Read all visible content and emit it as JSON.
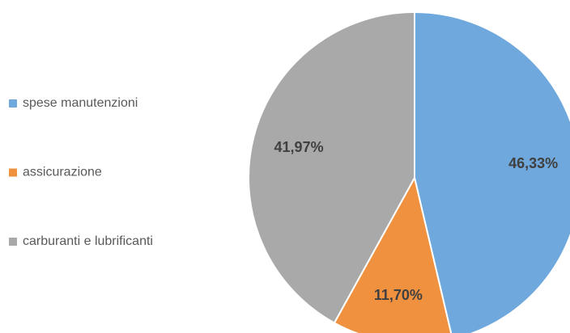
{
  "chart_data": {
    "type": "pie",
    "categories": [
      "spese manutenzioni",
      "assicurazione",
      "carburanti e lubrificanti"
    ],
    "values": [
      46.33,
      11.7,
      41.97
    ],
    "value_labels": [
      "46,33%",
      "11,70%",
      "41,97%"
    ],
    "colors": [
      "#6fa8dc",
      "#f0913f",
      "#a9a9a9"
    ],
    "legend": "left"
  }
}
